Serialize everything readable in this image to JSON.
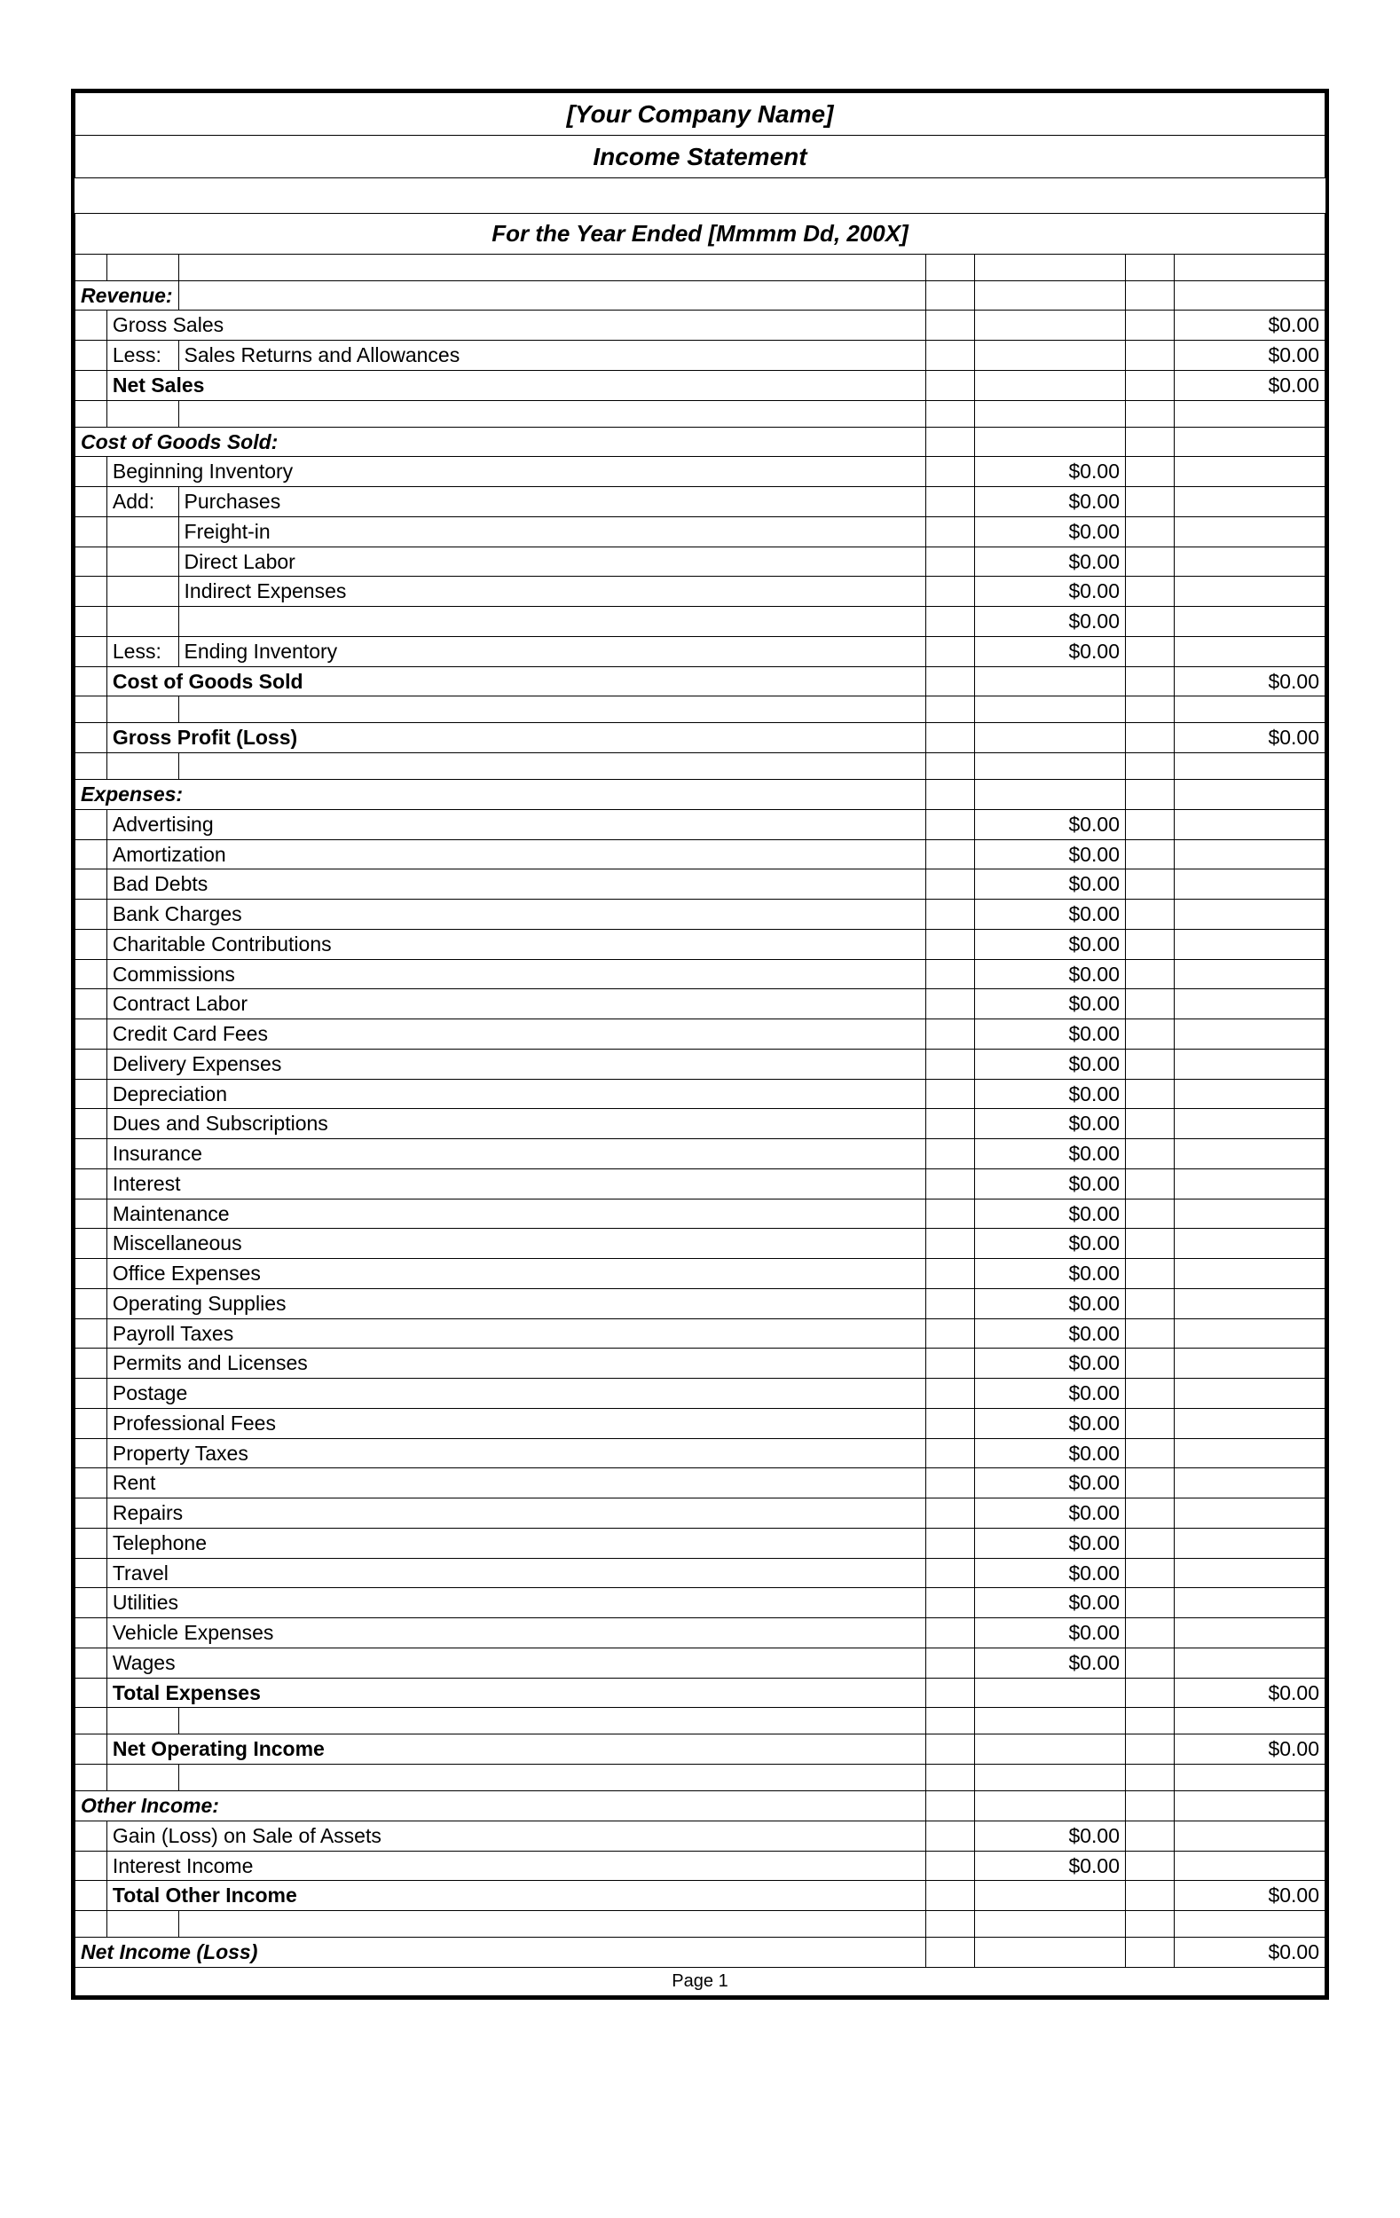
{
  "header": {
    "company": "[Your Company Name]",
    "title": "Income Statement",
    "period": "For the Year Ended [Mmmm Dd, 200X]"
  },
  "sections": {
    "revenue": {
      "label": "Revenue:",
      "gross_sales": {
        "label": "Gross Sales",
        "amount": "$0.00"
      },
      "less_label": "Less:",
      "returns": {
        "label": "Sales Returns and Allowances",
        "amount": "$0.00"
      },
      "net_sales": {
        "label": "Net Sales",
        "amount": "$0.00"
      }
    },
    "cogs": {
      "label": "Cost of Goods Sold:",
      "beginning_inventory": {
        "label": "Beginning Inventory",
        "amount": "$0.00"
      },
      "add_label": "Add:",
      "purchases": {
        "label": "Purchases",
        "amount": "$0.00"
      },
      "freight_in": {
        "label": "Freight-in",
        "amount": "$0.00"
      },
      "direct_labor": {
        "label": "Direct Labor",
        "amount": "$0.00"
      },
      "indirect_expenses": {
        "label": "Indirect Expenses",
        "amount": "$0.00"
      },
      "subtotal": {
        "amount": "$0.00"
      },
      "less_label": "Less:",
      "ending_inventory": {
        "label": "Ending Inventory",
        "amount": "$0.00"
      },
      "total": {
        "label": "Cost of Goods Sold",
        "amount": "$0.00"
      },
      "gross_profit": {
        "label": "Gross Profit (Loss)",
        "amount": "$0.00"
      }
    },
    "expenses": {
      "label": "Expenses:",
      "items": [
        {
          "label": "Advertising",
          "amount": "$0.00"
        },
        {
          "label": "Amortization",
          "amount": "$0.00"
        },
        {
          "label": "Bad Debts",
          "amount": "$0.00"
        },
        {
          "label": "Bank Charges",
          "amount": "$0.00"
        },
        {
          "label": "Charitable Contributions",
          "amount": "$0.00"
        },
        {
          "label": "Commissions",
          "amount": "$0.00"
        },
        {
          "label": "Contract Labor",
          "amount": "$0.00"
        },
        {
          "label": "Credit Card Fees",
          "amount": "$0.00"
        },
        {
          "label": "Delivery Expenses",
          "amount": "$0.00"
        },
        {
          "label": "Depreciation",
          "amount": "$0.00"
        },
        {
          "label": "Dues and Subscriptions",
          "amount": "$0.00"
        },
        {
          "label": "Insurance",
          "amount": "$0.00"
        },
        {
          "label": "Interest",
          "amount": "$0.00"
        },
        {
          "label": "Maintenance",
          "amount": "$0.00"
        },
        {
          "label": "Miscellaneous",
          "amount": "$0.00"
        },
        {
          "label": "Office Expenses",
          "amount": "$0.00"
        },
        {
          "label": "Operating Supplies",
          "amount": "$0.00"
        },
        {
          "label": "Payroll Taxes",
          "amount": "$0.00"
        },
        {
          "label": "Permits and Licenses",
          "amount": "$0.00"
        },
        {
          "label": "Postage",
          "amount": "$0.00"
        },
        {
          "label": "Professional Fees",
          "amount": "$0.00"
        },
        {
          "label": "Property Taxes",
          "amount": "$0.00"
        },
        {
          "label": "Rent",
          "amount": "$0.00"
        },
        {
          "label": "Repairs",
          "amount": "$0.00"
        },
        {
          "label": "Telephone",
          "amount": "$0.00"
        },
        {
          "label": "Travel",
          "amount": "$0.00"
        },
        {
          "label": "Utilities",
          "amount": "$0.00"
        },
        {
          "label": "Vehicle Expenses",
          "amount": "$0.00"
        },
        {
          "label": "Wages",
          "amount": "$0.00"
        }
      ],
      "total": {
        "label": "Total Expenses",
        "amount": "$0.00"
      },
      "net_operating": {
        "label": "Net Operating Income",
        "amount": "$0.00"
      }
    },
    "other_income": {
      "label": "Other Income:",
      "gain_loss": {
        "label": "Gain (Loss) on Sale of Assets",
        "amount": "$0.00"
      },
      "interest_income": {
        "label": "Interest Income",
        "amount": "$0.00"
      },
      "total": {
        "label": "Total Other Income",
        "amount": "$0.00"
      }
    },
    "net_income": {
      "label": "Net Income (Loss)",
      "amount": "$0.00"
    }
  },
  "footer": {
    "page": "Page 1"
  },
  "style": {
    "border_color": "#000000",
    "background": "#ffffff",
    "font_family": "Arial",
    "title_fontsize": 28,
    "body_fontsize": 23,
    "col_widths": {
      "A": 32,
      "B": 72,
      "D": 55,
      "E": 170,
      "F": 55,
      "G": 170
    },
    "outer_border_width": 4
  }
}
